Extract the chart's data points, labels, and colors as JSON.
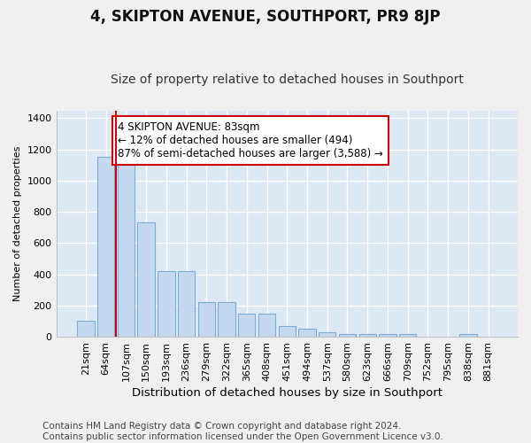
{
  "title": "4, SKIPTON AVENUE, SOUTHPORT, PR9 8JP",
  "subtitle": "Size of property relative to detached houses in Southport",
  "xlabel": "Distribution of detached houses by size in Southport",
  "ylabel": "Number of detached properties",
  "categories": [
    "21sqm",
    "64sqm",
    "107sqm",
    "150sqm",
    "193sqm",
    "236sqm",
    "279sqm",
    "322sqm",
    "365sqm",
    "408sqm",
    "451sqm",
    "494sqm",
    "537sqm",
    "580sqm",
    "623sqm",
    "666sqm",
    "709sqm",
    "752sqm",
    "795sqm",
    "838sqm",
    "881sqm"
  ],
  "values": [
    105,
    1155,
    1155,
    730,
    420,
    420,
    220,
    220,
    150,
    150,
    70,
    50,
    30,
    20,
    15,
    15,
    15,
    0,
    0,
    15,
    0
  ],
  "bar_color": "#c5d8f0",
  "bar_edge_color": "#7aadd4",
  "annotation_text": "4 SKIPTON AVENUE: 83sqm\n← 12% of detached houses are smaller (494)\n87% of semi-detached houses are larger (3,588) →",
  "annotation_box_color": "#ffffff",
  "annotation_box_edge": "#cc0000",
  "vline_color": "#cc0000",
  "vline_x": 1.5,
  "ylim": [
    0,
    1450
  ],
  "yticks": [
    0,
    200,
    400,
    600,
    800,
    1000,
    1200,
    1400
  ],
  "bg_color": "#dde8f5",
  "grid_color": "#ffffff",
  "fig_bg_color": "#f0f0f0",
  "footer": "Contains HM Land Registry data © Crown copyright and database right 2024.\nContains public sector information licensed under the Open Government Licence v3.0.",
  "title_fontsize": 12,
  "subtitle_fontsize": 10,
  "xlabel_fontsize": 9.5,
  "ylabel_fontsize": 8,
  "tick_fontsize": 8,
  "annotation_fontsize": 8.5,
  "footer_fontsize": 7.5
}
